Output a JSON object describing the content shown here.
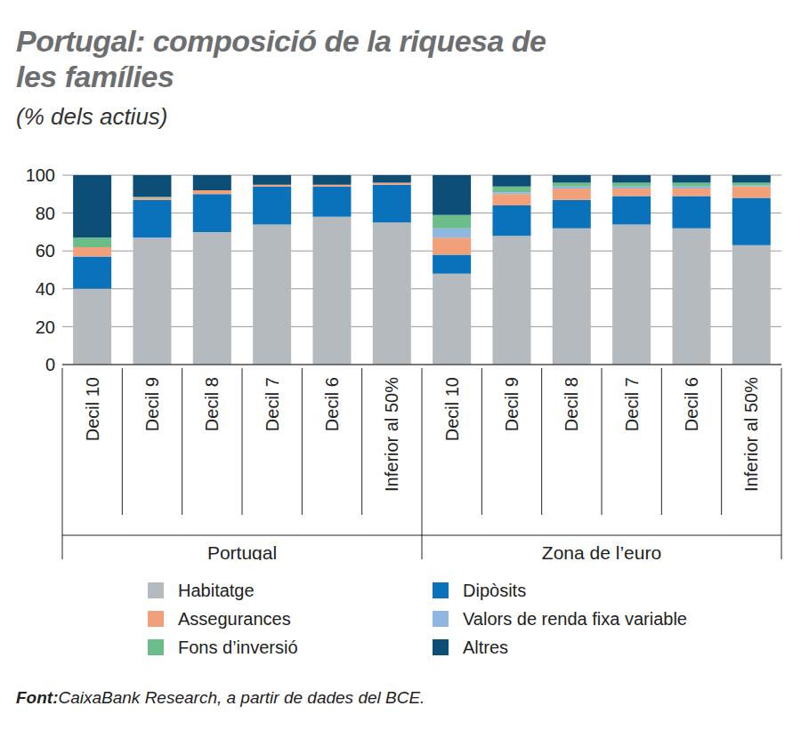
{
  "chart_data": {
    "type": "bar",
    "stacked": true,
    "grid": true,
    "title": "Portugal: composició de la riquesa de les famílies",
    "subtitle": "(% dels actius)",
    "source_label": "Font:",
    "source": "CaixaBank Research, a partir de dades del BCE.",
    "groups": [
      "Portugal",
      "Zona de l’euro"
    ],
    "categories": [
      "Decil 10",
      "Decil 9",
      "Decil 8",
      "Decil 7",
      "Decil 6",
      "Inferior al 50%",
      "Decil 10",
      "Decil 9",
      "Decil 8",
      "Decil 7",
      "Decil 6",
      "Inferior al 50%"
    ],
    "ylim": [
      0,
      100
    ],
    "yticks": [
      0,
      20,
      40,
      60,
      80,
      100
    ],
    "series": [
      {
        "name": "Habitatge",
        "color": "#b4babe",
        "values": [
          40,
          67,
          70,
          74,
          78,
          75,
          48,
          68,
          72,
          74,
          72,
          63
        ]
      },
      {
        "name": "Dipòsits",
        "color": "#0a72ba",
        "values": [
          17,
          20,
          20,
          20,
          16,
          20,
          10,
          16,
          15,
          15,
          17,
          25
        ]
      },
      {
        "name": "Assegurances",
        "color": "#f2a07a",
        "values": [
          5,
          1,
          2,
          1,
          1,
          1,
          9,
          6,
          6,
          4,
          4,
          6
        ]
      },
      {
        "name": "Valors de renda fixa variable",
        "color": "#8fb7e2",
        "values": [
          0,
          0,
          0,
          0,
          0,
          0,
          5,
          1,
          1,
          1,
          1,
          0.5
        ]
      },
      {
        "name": "Fons d’inversió",
        "color": "#6dbd8b",
        "values": [
          5,
          0.5,
          0,
          0,
          0,
          0,
          7,
          3,
          2,
          2,
          2,
          1.5
        ]
      },
      {
        "name": "Altres",
        "color": "#0d4e77",
        "values": [
          33,
          11.5,
          8,
          5,
          5,
          4,
          21,
          6,
          4,
          4,
          4,
          4
        ]
      }
    ]
  }
}
